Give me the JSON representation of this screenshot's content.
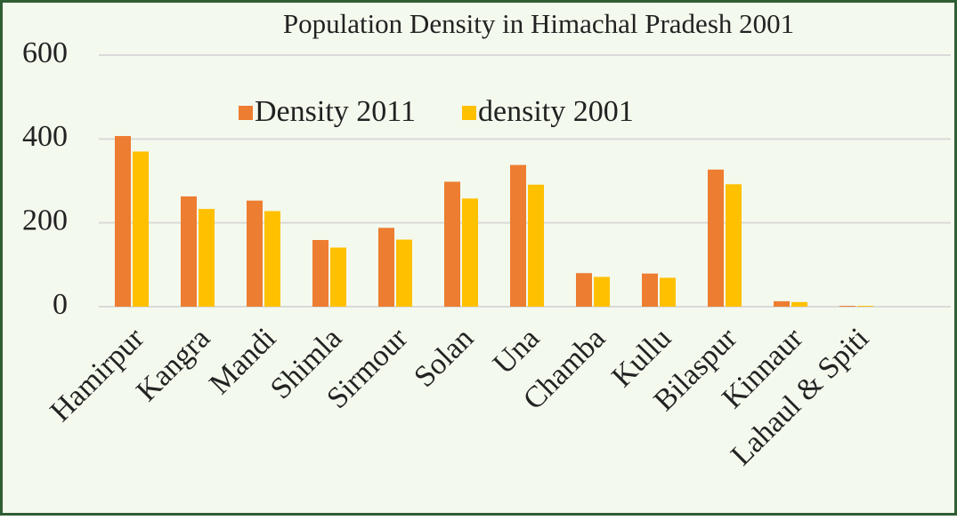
{
  "chart_data": {
    "type": "bar",
    "title": "Population Density in Himachal Pradesh 2001",
    "categories": [
      "Hamirpur",
      "Kangra",
      "Mandi",
      "Shimla",
      "Sirmour",
      "Solan",
      "Una",
      "Chamba",
      "Kullu",
      "Bilaspur",
      "Kinnaur",
      "Lahaul & Spiti"
    ],
    "series": [
      {
        "name": "Density 2011",
        "color": "#ed7d31",
        "values": [
          407,
          263,
          253,
          159,
          188,
          298,
          338,
          80,
          79,
          327,
          13,
          2
        ]
      },
      {
        "name": "density 2001",
        "color": "#ffc000",
        "values": [
          370,
          233,
          228,
          141,
          160,
          258,
          291,
          71,
          69,
          292,
          11,
          2
        ]
      }
    ],
    "ylim": [
      0,
      600
    ],
    "yticks": [
      0,
      200,
      400,
      600
    ],
    "grid": true,
    "legend": "top"
  }
}
